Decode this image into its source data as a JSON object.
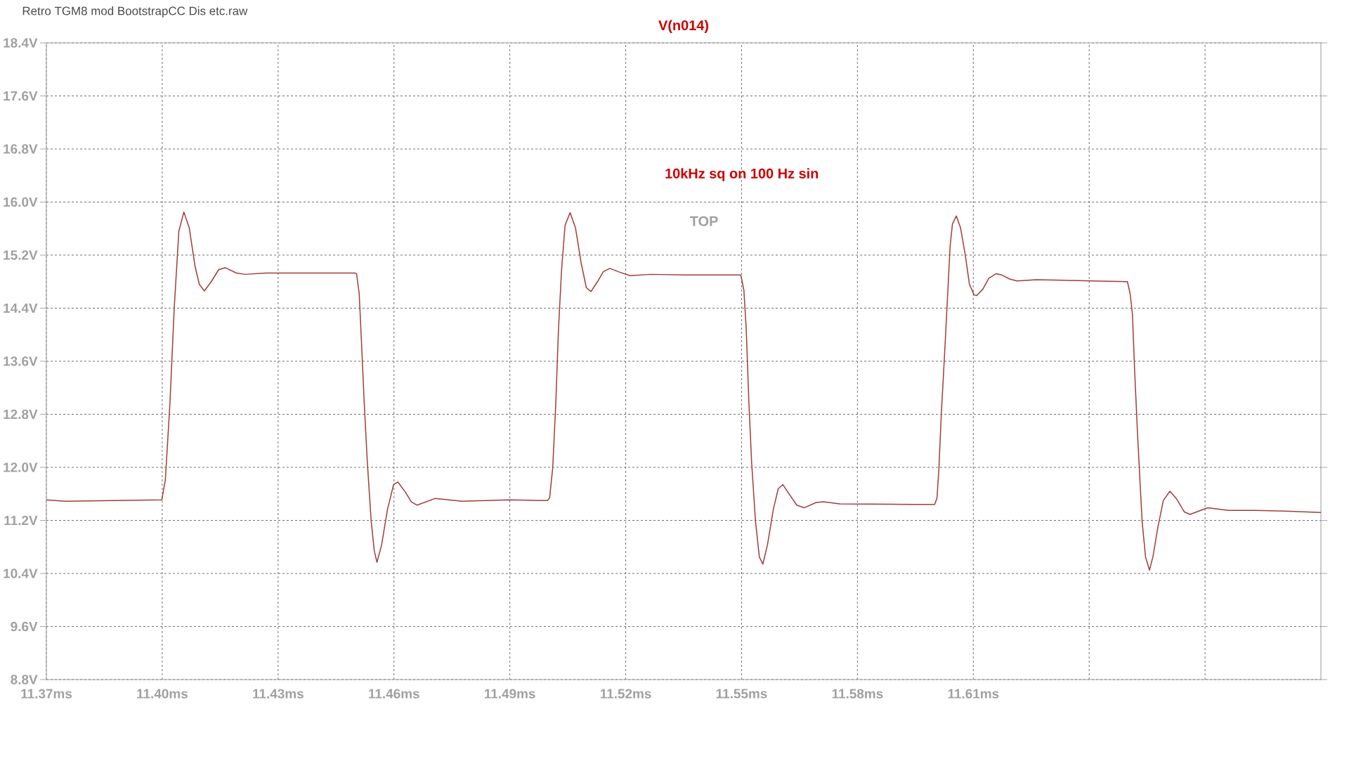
{
  "chart_data": {
    "type": "line",
    "title": "V(n014)",
    "annotations": [
      "Retro TGM8 mod BootstrapCC Dis etc.raw",
      "10kHz sq on 100 Hz sin",
      "TOP"
    ],
    "xlim": [
      11.37,
      11.7
    ],
    "ylim": [
      8.8,
      18.4
    ],
    "xticks": [
      {
        "value": 11.37,
        "label": "11.37ms"
      },
      {
        "value": 11.4,
        "label": "11.40ms"
      },
      {
        "value": 11.43,
        "label": "11.43ms"
      },
      {
        "value": 11.46,
        "label": "11.46ms"
      },
      {
        "value": 11.49,
        "label": "11.49ms"
      },
      {
        "value": 11.52,
        "label": "11.52ms"
      },
      {
        "value": 11.55,
        "label": "11.55ms"
      },
      {
        "value": 11.58,
        "label": "11.58ms"
      },
      {
        "value": 11.61,
        "label": "11.61ms"
      },
      {
        "value": 11.64,
        "label": null
      },
      {
        "value": 11.67,
        "label": null
      }
    ],
    "yticks": [
      {
        "value": 8.8,
        "label": "8.8V"
      },
      {
        "value": 9.6,
        "label": "9.6V"
      },
      {
        "value": 10.4,
        "label": "10.4V"
      },
      {
        "value": 11.2,
        "label": "11.2V"
      },
      {
        "value": 12.0,
        "label": "12.0V"
      },
      {
        "value": 12.8,
        "label": "12.8V"
      },
      {
        "value": 13.6,
        "label": "13.6V"
      },
      {
        "value": 14.4,
        "label": "14.4V"
      },
      {
        "value": 15.2,
        "label": "15.2V"
      },
      {
        "value": 16.0,
        "label": "16.0V"
      },
      {
        "value": 16.8,
        "label": "16.8V"
      },
      {
        "value": 17.6,
        "label": "17.6V"
      },
      {
        "value": 18.4,
        "label": "18.4V"
      }
    ],
    "grid": true,
    "line_style": "solid",
    "series": [
      {
        "color": "#a03c3c",
        "x": [
          11.37,
          11.3748,
          11.3999,
          11.4008,
          11.402,
          11.4031,
          11.4043,
          11.4056,
          11.407,
          11.4085,
          11.4096,
          11.4109,
          11.4127,
          11.4146,
          11.4163,
          11.4192,
          11.4215,
          11.4269,
          11.4346,
          11.4499,
          11.4503,
          11.451,
          11.4516,
          11.4523,
          11.4531,
          11.4541,
          11.4549,
          11.4556,
          11.4568,
          11.4583,
          11.4599,
          11.461,
          11.4629,
          11.4645,
          11.466,
          11.4683,
          11.4706,
          11.476,
          11.4775,
          11.4898,
          11.4997,
          11.5003,
          11.5011,
          11.5019,
          11.5026,
          11.5034,
          11.5043,
          11.5056,
          11.507,
          11.5085,
          11.5098,
          11.511,
          11.5127,
          11.5142,
          11.5159,
          11.5181,
          11.5211,
          11.5265,
          11.5357,
          11.5498,
          11.5506,
          11.5512,
          11.5519,
          11.5526,
          11.5536,
          11.5546,
          11.5555,
          11.5567,
          11.5582,
          11.5595,
          11.5607,
          11.5624,
          11.5643,
          11.5662,
          11.5693,
          11.5712,
          11.5754,
          11.5944,
          11.6,
          11.6006,
          11.6011,
          11.6017,
          11.6025,
          11.6033,
          11.604,
          11.6046,
          11.6056,
          11.6067,
          11.6079,
          11.609,
          11.6102,
          11.6109,
          11.6125,
          11.614,
          11.6159,
          11.6174,
          11.6194,
          11.6213,
          11.6263,
          11.6332,
          11.6408,
          11.6499,
          11.6506,
          11.6512,
          11.6518,
          11.6525,
          11.6531,
          11.6537,
          11.6546,
          11.6556,
          11.6565,
          11.6578,
          11.6592,
          11.6609,
          11.6627,
          11.6646,
          11.6661,
          11.6684,
          11.6707,
          11.6761,
          11.683,
          11.6907,
          11.7
        ],
        "values": [
          11.51,
          11.49,
          11.51,
          11.81,
          12.97,
          14.4,
          15.56,
          15.85,
          15.61,
          15.03,
          14.76,
          14.66,
          14.8,
          14.98,
          15.01,
          14.93,
          14.91,
          14.93,
          14.93,
          14.93,
          14.92,
          14.62,
          13.87,
          12.97,
          12.08,
          11.19,
          10.74,
          10.57,
          10.83,
          11.36,
          11.74,
          11.78,
          11.63,
          11.48,
          11.43,
          11.48,
          11.53,
          11.5,
          11.49,
          11.51,
          11.5,
          11.54,
          11.99,
          12.97,
          14.09,
          14.98,
          15.65,
          15.84,
          15.61,
          15.07,
          14.71,
          14.65,
          14.8,
          14.95,
          15.0,
          14.95,
          14.89,
          14.91,
          14.9,
          14.9,
          14.67,
          14.09,
          12.97,
          12.08,
          11.19,
          10.65,
          10.54,
          10.83,
          11.36,
          11.68,
          11.74,
          11.59,
          11.43,
          11.39,
          11.47,
          11.48,
          11.45,
          11.44,
          11.44,
          11.54,
          11.99,
          12.79,
          13.64,
          14.54,
          15.34,
          15.67,
          15.79,
          15.61,
          15.21,
          14.76,
          14.6,
          14.59,
          14.69,
          14.85,
          14.92,
          14.9,
          14.84,
          14.81,
          14.83,
          14.82,
          14.81,
          14.8,
          14.62,
          14.31,
          13.42,
          12.53,
          11.86,
          11.19,
          10.65,
          10.45,
          10.65,
          11.1,
          11.5,
          11.64,
          11.52,
          11.33,
          11.29,
          11.34,
          11.39,
          11.35,
          11.35,
          11.34,
          11.32
        ]
      }
    ]
  }
}
